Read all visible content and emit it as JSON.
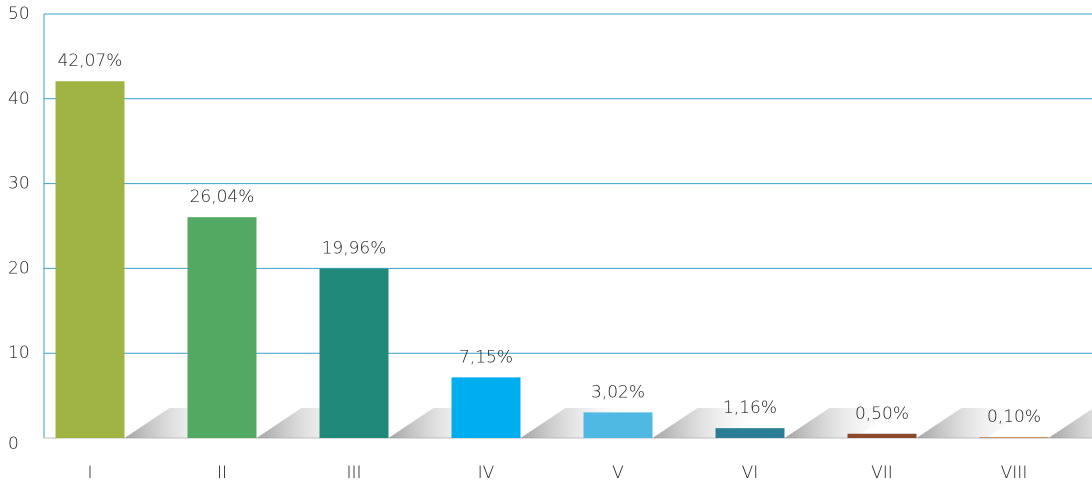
{
  "chart_data": {
    "type": "bar",
    "categories": [
      "I",
      "II",
      "III",
      "IV",
      "V",
      "VI",
      "VII",
      "VIII"
    ],
    "values": [
      42.07,
      26.04,
      19.96,
      7.15,
      3.02,
      1.16,
      0.5,
      0.1
    ],
    "value_labels": [
      "42,07%",
      "26,04%",
      "19,96%",
      "7,15%",
      "3,02%",
      "1,16%",
      "0,50%",
      "0,10%"
    ],
    "colors": [
      "#a0b443",
      "#52aa62",
      "#21897a",
      "#00aeef",
      "#4fb8e3",
      "#2a7e96",
      "#8b4a2b",
      "#c07a4a"
    ],
    "ylim": [
      0,
      50
    ],
    "yticks": [
      0,
      10,
      20,
      30,
      40,
      50
    ],
    "grid": true
  }
}
